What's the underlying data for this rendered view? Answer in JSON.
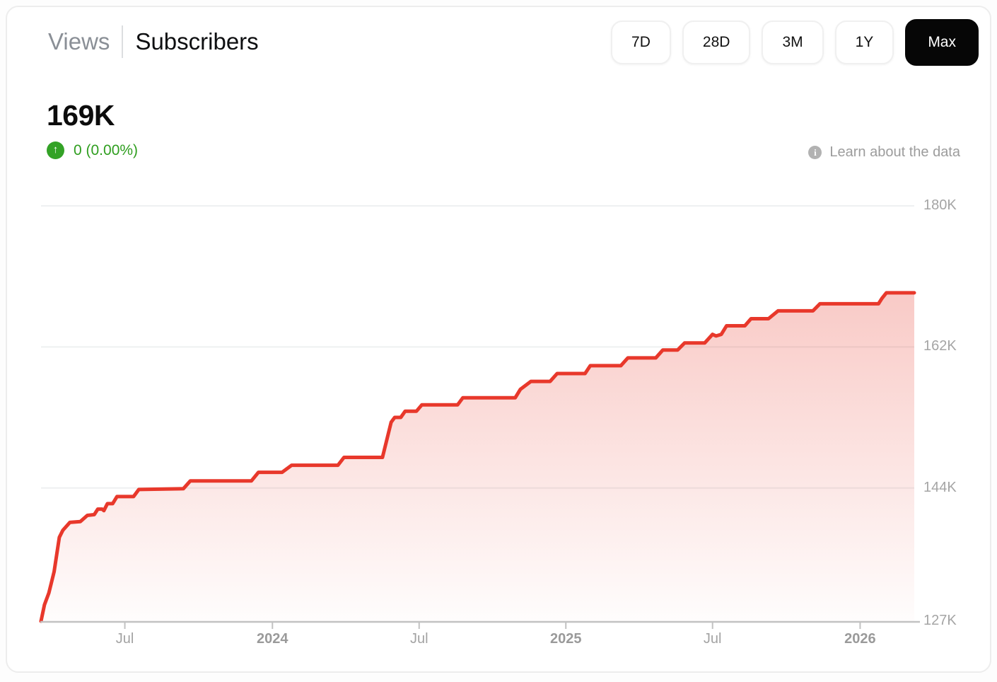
{
  "header": {
    "tabs": [
      {
        "label": "Views",
        "active": false
      },
      {
        "label": "Subscribers",
        "active": true
      }
    ],
    "ranges": [
      {
        "label": "7D",
        "active": false
      },
      {
        "label": "28D",
        "active": false
      },
      {
        "label": "3M",
        "active": false
      },
      {
        "label": "1Y",
        "active": false
      },
      {
        "label": "Max",
        "active": true
      }
    ]
  },
  "stats": {
    "value": "169K",
    "delta": "0 (0.00%)",
    "delta_arrow": "↑",
    "delta_color": "#2f9e1f"
  },
  "aside": {
    "info_glyph": "i",
    "learn_label": "Learn about the data"
  },
  "chart_data": {
    "type": "area",
    "metric": "Subscribers",
    "unit": "subscribers, thousands (K)",
    "current_value_label": "169K",
    "grid": true,
    "legend": "none",
    "y_axis": {
      "min": 127,
      "max": 180,
      "tick_values": [
        180,
        162,
        144,
        127
      ],
      "tick_labels": [
        "180K",
        "162K",
        "144K",
        "127K"
      ],
      "labels_position": "right"
    },
    "x_axis": {
      "ticks": [
        {
          "label": "Jul",
          "bold": false,
          "pos": 0.096
        },
        {
          "label": "2024",
          "bold": true,
          "pos": 0.265
        },
        {
          "label": "Jul",
          "bold": false,
          "pos": 0.433
        },
        {
          "label": "2025",
          "bold": true,
          "pos": 0.601
        },
        {
          "label": "Jul",
          "bold": false,
          "pos": 0.769
        },
        {
          "label": "2026",
          "bold": true,
          "pos": 0.938
        }
      ]
    },
    "series": [
      {
        "name": "Subscribers",
        "points": [
          [
            0.0,
            127.0
          ],
          [
            0.004,
            129.1
          ],
          [
            0.009,
            130.6
          ],
          [
            0.015,
            133.3
          ],
          [
            0.021,
            137.7
          ],
          [
            0.025,
            138.6
          ],
          [
            0.033,
            139.6
          ],
          [
            0.045,
            139.7
          ],
          [
            0.053,
            140.5
          ],
          [
            0.061,
            140.6
          ],
          [
            0.065,
            141.3
          ],
          [
            0.07,
            141.3
          ],
          [
            0.072,
            141.1
          ],
          [
            0.076,
            142.0
          ],
          [
            0.082,
            142.0
          ],
          [
            0.087,
            142.9
          ],
          [
            0.106,
            142.9
          ],
          [
            0.112,
            143.8
          ],
          [
            0.163,
            143.9
          ],
          [
            0.171,
            144.9
          ],
          [
            0.241,
            144.9
          ],
          [
            0.249,
            146.0
          ],
          [
            0.276,
            146.0
          ],
          [
            0.287,
            146.9
          ],
          [
            0.34,
            146.9
          ],
          [
            0.347,
            147.9
          ],
          [
            0.391,
            147.9
          ],
          [
            0.401,
            152.4
          ],
          [
            0.405,
            153.0
          ],
          [
            0.412,
            153.0
          ],
          [
            0.417,
            153.8
          ],
          [
            0.43,
            153.8
          ],
          [
            0.436,
            154.6
          ],
          [
            0.477,
            154.6
          ],
          [
            0.483,
            155.5
          ],
          [
            0.543,
            155.5
          ],
          [
            0.549,
            156.6
          ],
          [
            0.561,
            157.6
          ],
          [
            0.583,
            157.6
          ],
          [
            0.591,
            158.6
          ],
          [
            0.623,
            158.6
          ],
          [
            0.629,
            159.6
          ],
          [
            0.664,
            159.6
          ],
          [
            0.672,
            160.6
          ],
          [
            0.704,
            160.6
          ],
          [
            0.712,
            161.6
          ],
          [
            0.729,
            161.6
          ],
          [
            0.737,
            162.5
          ],
          [
            0.76,
            162.5
          ],
          [
            0.769,
            163.6
          ],
          [
            0.773,
            163.4
          ],
          [
            0.779,
            163.6
          ],
          [
            0.785,
            164.7
          ],
          [
            0.806,
            164.7
          ],
          [
            0.813,
            165.6
          ],
          [
            0.833,
            165.6
          ],
          [
            0.844,
            166.6
          ],
          [
            0.884,
            166.6
          ],
          [
            0.892,
            167.5
          ],
          [
            0.959,
            167.5
          ],
          [
            0.963,
            168.2
          ],
          [
            0.968,
            168.9
          ],
          [
            1.0,
            168.9
          ]
        ]
      }
    ],
    "colors": {
      "line": "#e8382b",
      "fill_top": "rgba(231,54,40,0.26)",
      "fill_bottom": "rgba(231,54,40,0.01)",
      "gridline": "#eef0f1",
      "axis": "#c2c2c2"
    }
  }
}
